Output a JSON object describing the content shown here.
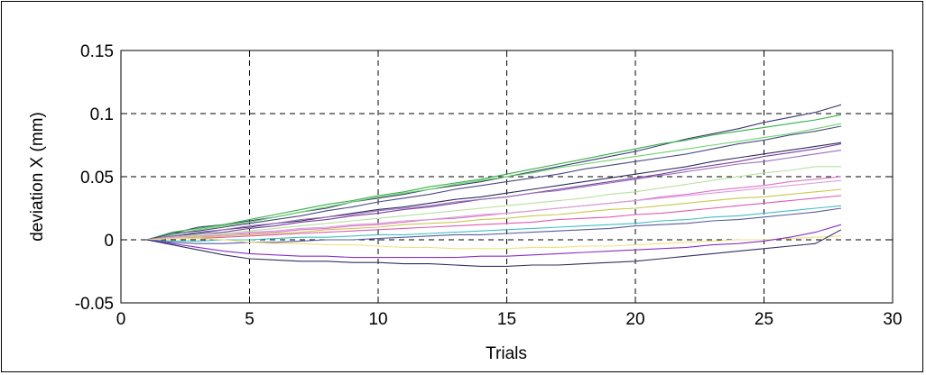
{
  "chart_data": {
    "type": "line",
    "title": "",
    "xlabel": "Trials",
    "ylabel": "deviation X (mm)",
    "xlim": [
      0,
      30
    ],
    "ylim": [
      -0.05,
      0.15
    ],
    "xticks": [
      0,
      5,
      10,
      15,
      20,
      25,
      30
    ],
    "xtick_labels": [
      "0",
      "5",
      "10",
      "15",
      "20",
      "25",
      "30"
    ],
    "yticks": [
      -0.05,
      0,
      0.05,
      0.1,
      0.15
    ],
    "ytick_labels": [
      "-0.05",
      "0",
      "0.05",
      "0.1",
      "0.15"
    ],
    "grid": true,
    "legend": "none",
    "x": [
      1,
      2,
      3,
      4,
      5,
      6,
      7,
      8,
      9,
      10,
      11,
      12,
      13,
      14,
      15,
      16,
      17,
      18,
      19,
      20,
      21,
      22,
      23,
      24,
      25,
      26,
      27,
      28
    ],
    "series": [
      {
        "color": "#3a3a6e",
        "values": [
          0,
          0.005,
          0.01,
          0.012,
          0.015,
          0.018,
          0.022,
          0.025,
          0.03,
          0.033,
          0.036,
          0.04,
          0.043,
          0.046,
          0.05,
          0.054,
          0.058,
          0.062,
          0.066,
          0.07,
          0.075,
          0.08,
          0.084,
          0.088,
          0.093,
          0.097,
          0.101,
          0.107
        ]
      },
      {
        "color": "#35b04a",
        "values": [
          0,
          0.006,
          0.009,
          0.012,
          0.016,
          0.02,
          0.024,
          0.028,
          0.031,
          0.035,
          0.038,
          0.042,
          0.045,
          0.048,
          0.052,
          0.056,
          0.06,
          0.064,
          0.068,
          0.072,
          0.076,
          0.079,
          0.083,
          0.086,
          0.089,
          0.092,
          0.095,
          0.099
        ]
      },
      {
        "color": "#6fd36f",
        "values": [
          0,
          0.004,
          0.008,
          0.011,
          0.014,
          0.018,
          0.022,
          0.026,
          0.03,
          0.034,
          0.037,
          0.04,
          0.044,
          0.047,
          0.05,
          0.053,
          0.057,
          0.06,
          0.063,
          0.066,
          0.069,
          0.072,
          0.075,
          0.078,
          0.081,
          0.084,
          0.088,
          0.092
        ]
      },
      {
        "color": "#4a4a80",
        "values": [
          0,
          0.005,
          0.007,
          0.01,
          0.013,
          0.016,
          0.019,
          0.023,
          0.026,
          0.03,
          0.033,
          0.036,
          0.04,
          0.043,
          0.046,
          0.049,
          0.052,
          0.056,
          0.059,
          0.062,
          0.065,
          0.068,
          0.072,
          0.076,
          0.079,
          0.083,
          0.086,
          0.09
        ]
      },
      {
        "color": "#2d2d5e",
        "values": [
          0,
          0.003,
          0.005,
          0.008,
          0.01,
          0.013,
          0.015,
          0.018,
          0.021,
          0.024,
          0.026,
          0.029,
          0.032,
          0.034,
          0.037,
          0.04,
          0.043,
          0.046,
          0.049,
          0.052,
          0.055,
          0.058,
          0.062,
          0.065,
          0.068,
          0.071,
          0.074,
          0.077
        ]
      },
      {
        "color": "#7a3fa0",
        "values": [
          0,
          0.002,
          0.004,
          0.006,
          0.009,
          0.011,
          0.014,
          0.016,
          0.019,
          0.021,
          0.024,
          0.026,
          0.029,
          0.032,
          0.034,
          0.037,
          0.04,
          0.043,
          0.046,
          0.049,
          0.052,
          0.056,
          0.059,
          0.062,
          0.066,
          0.069,
          0.072,
          0.076
        ]
      },
      {
        "color": "#9a6fb8",
        "values": [
          0,
          0.003,
          0.006,
          0.008,
          0.011,
          0.013,
          0.016,
          0.018,
          0.02,
          0.023,
          0.025,
          0.027,
          0.03,
          0.032,
          0.034,
          0.037,
          0.039,
          0.042,
          0.045,
          0.048,
          0.051,
          0.054,
          0.057,
          0.06,
          0.062,
          0.065,
          0.068,
          0.071
        ]
      },
      {
        "color": "#b8e0a0",
        "values": [
          0,
          0.002,
          0.004,
          0.005,
          0.007,
          0.009,
          0.011,
          0.013,
          0.015,
          0.017,
          0.019,
          0.021,
          0.023,
          0.025,
          0.027,
          0.029,
          0.031,
          0.033,
          0.036,
          0.038,
          0.041,
          0.044,
          0.047,
          0.05,
          0.053,
          0.055,
          0.058,
          0.058
        ]
      },
      {
        "color": "#e070c8",
        "values": [
          0,
          0.001,
          0.002,
          0.004,
          0.005,
          0.006,
          0.008,
          0.009,
          0.011,
          0.012,
          0.014,
          0.016,
          0.017,
          0.019,
          0.021,
          0.023,
          0.025,
          0.027,
          0.029,
          0.031,
          0.034,
          0.036,
          0.039,
          0.041,
          0.043,
          0.046,
          0.048,
          0.05
        ]
      },
      {
        "color": "#d7a0d8",
        "values": [
          0,
          0.002,
          0.003,
          0.004,
          0.006,
          0.007,
          0.009,
          0.01,
          0.012,
          0.013,
          0.015,
          0.016,
          0.018,
          0.02,
          0.021,
          0.023,
          0.025,
          0.027,
          0.029,
          0.031,
          0.033,
          0.035,
          0.037,
          0.039,
          0.041,
          0.043,
          0.045,
          0.047
        ]
      },
      {
        "color": "#c8c850",
        "values": [
          0,
          0.001,
          0.002,
          0.003,
          0.004,
          0.005,
          0.006,
          0.008,
          0.009,
          0.01,
          0.012,
          0.013,
          0.014,
          0.016,
          0.017,
          0.019,
          0.02,
          0.022,
          0.024,
          0.025,
          0.027,
          0.029,
          0.031,
          0.033,
          0.034,
          0.036,
          0.038,
          0.04
        ]
      },
      {
        "color": "#e05ab0",
        "values": [
          0,
          0.001,
          0.001,
          0.002,
          0.003,
          0.004,
          0.005,
          0.006,
          0.007,
          0.008,
          0.009,
          0.01,
          0.011,
          0.012,
          0.013,
          0.014,
          0.016,
          0.017,
          0.018,
          0.02,
          0.021,
          0.023,
          0.025,
          0.027,
          0.029,
          0.031,
          0.033,
          0.035
        ]
      },
      {
        "color": "#40c0c0",
        "values": [
          0,
          -0.001,
          -0.001,
          0,
          0,
          0.001,
          0.002,
          0.002,
          0.003,
          0.004,
          0.004,
          0.005,
          0.006,
          0.007,
          0.008,
          0.009,
          0.01,
          0.011,
          0.012,
          0.013,
          0.015,
          0.016,
          0.018,
          0.019,
          0.021,
          0.023,
          0.025,
          0.027
        ]
      },
      {
        "color": "#5a5aa0",
        "values": [
          0,
          -0.002,
          -0.003,
          -0.003,
          -0.002,
          -0.002,
          -0.001,
          0,
          0,
          0.001,
          0.002,
          0.003,
          0.004,
          0.004,
          0.005,
          0.006,
          0.007,
          0.008,
          0.009,
          0.011,
          0.012,
          0.013,
          0.015,
          0.016,
          0.018,
          0.02,
          0.022,
          0.025
        ]
      },
      {
        "color": "#f0e080",
        "values": [
          0,
          0.001,
          0.001,
          0,
          -0.002,
          -0.003,
          -0.003,
          -0.004,
          -0.004,
          -0.005,
          -0.006,
          -0.006,
          -0.007,
          -0.007,
          -0.007,
          -0.006,
          -0.006,
          -0.005,
          -0.005,
          -0.004,
          -0.003,
          -0.002,
          -0.001,
          0,
          0,
          0.001,
          0.002,
          0.003
        ]
      },
      {
        "color": "#8a30c0",
        "values": [
          0,
          -0.003,
          -0.006,
          -0.009,
          -0.011,
          -0.012,
          -0.013,
          -0.013,
          -0.014,
          -0.014,
          -0.014,
          -0.014,
          -0.014,
          -0.013,
          -0.013,
          -0.012,
          -0.011,
          -0.01,
          -0.009,
          -0.008,
          -0.007,
          -0.006,
          -0.004,
          -0.003,
          -0.001,
          0.002,
          0.006,
          0.012
        ]
      },
      {
        "color": "#303060",
        "values": [
          0,
          -0.004,
          -0.008,
          -0.012,
          -0.015,
          -0.016,
          -0.017,
          -0.017,
          -0.018,
          -0.018,
          -0.019,
          -0.019,
          -0.02,
          -0.021,
          -0.021,
          -0.02,
          -0.02,
          -0.019,
          -0.018,
          -0.017,
          -0.015,
          -0.013,
          -0.011,
          -0.009,
          -0.007,
          -0.005,
          -0.003,
          0.008
        ]
      }
    ]
  }
}
